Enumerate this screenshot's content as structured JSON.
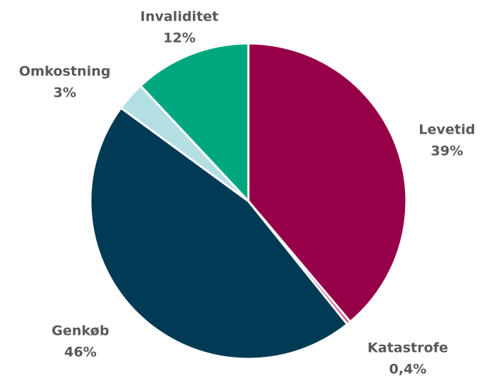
{
  "chart_data": {
    "type": "pie",
    "categories": [
      "Levetid",
      "Katastrofe",
      "Genkøb",
      "Omkostning",
      "Invaliditet"
    ],
    "values": [
      39,
      0.4,
      46,
      3,
      12
    ],
    "value_labels": [
      "39%",
      "0,4%",
      "46%",
      "3%",
      "12%"
    ],
    "colors": [
      "#960048",
      "#e0527f",
      "#003a55",
      "#b3dfe3",
      "#00a77e"
    ]
  }
}
